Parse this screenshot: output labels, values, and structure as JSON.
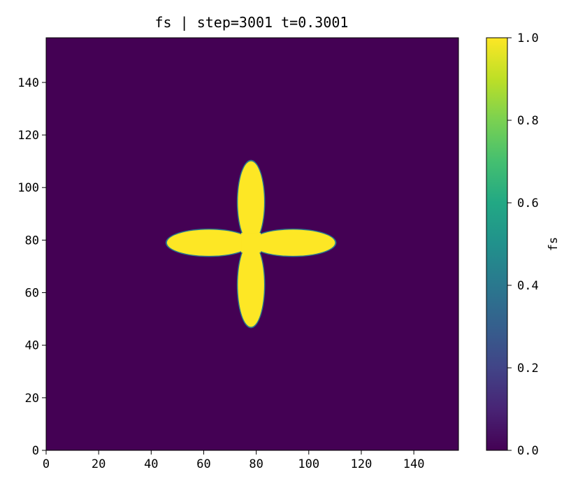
{
  "chart_data": {
    "type": "heatmap",
    "title": "fs | step=3001 t=0.3001",
    "xlabel": "",
    "ylabel": "",
    "xlim": [
      0,
      157
    ],
    "ylim": [
      0,
      157
    ],
    "x_ticks": [
      0,
      20,
      40,
      60,
      80,
      100,
      120,
      140
    ],
    "y_ticks": [
      0,
      20,
      40,
      60,
      80,
      100,
      120,
      140
    ],
    "x_tick_labels": [
      "0",
      "20",
      "40",
      "60",
      "80",
      "100",
      "120",
      "140"
    ],
    "y_tick_labels": [
      "0",
      "20",
      "40",
      "60",
      "80",
      "100",
      "120",
      "140"
    ],
    "grid": false,
    "colormap": "viridis",
    "background_value": 0.0,
    "crystal_value": 1.0,
    "crystal_shape": {
      "center": [
        78,
        79
      ],
      "arms": [
        {
          "direction": "up",
          "tip": [
            78,
            110
          ],
          "width": 10
        },
        {
          "direction": "down",
          "tip": [
            78,
            47
          ],
          "width": 10
        },
        {
          "direction": "left",
          "tip": [
            46,
            79
          ],
          "width": 10
        },
        {
          "direction": "right",
          "tip": [
            110,
            79
          ],
          "width": 10
        }
      ]
    },
    "colorbar": {
      "label": "fs",
      "range": [
        0.0,
        1.0
      ],
      "ticks": [
        0.0,
        0.2,
        0.4,
        0.6,
        0.8,
        1.0
      ],
      "tick_labels": [
        "0.0",
        "0.2",
        "0.4",
        "0.6",
        "0.8",
        "1.0"
      ]
    }
  }
}
